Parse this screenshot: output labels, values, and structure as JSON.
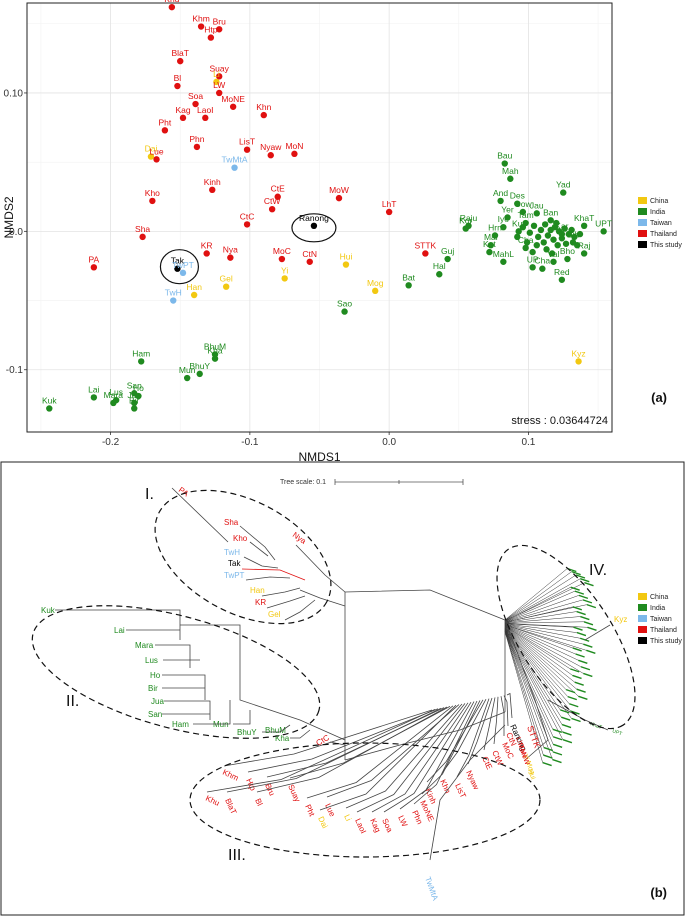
{
  "colors": {
    "China": "#f2c811",
    "India": "#1f8a1f",
    "Taiwan": "#7cb8ea",
    "Thailand": "#e01010",
    "This study": "#000000"
  },
  "chart_data": [
    {
      "type": "scatter",
      "panel_label": "(a)",
      "xlabel": "NMDS1",
      "ylabel": "NMDS2",
      "xlim": [
        -0.26,
        0.16
      ],
      "ylim": [
        -0.145,
        0.165
      ],
      "xticks": [
        {
          "v": -0.2,
          "label": "-0.2"
        },
        {
          "v": -0.1,
          "label": "-0.1"
        },
        {
          "v": 0.0,
          "label": "0.0"
        },
        {
          "v": 0.1,
          "label": "0.1"
        }
      ],
      "yticks": [
        {
          "v": -0.1,
          "label": "-0.1"
        },
        {
          "v": 0.0,
          "label": "0.0"
        },
        {
          "v": 0.1,
          "label": "0.10"
        }
      ],
      "stress_text": "stress : 0.03644724",
      "legend": [
        "China",
        "India",
        "Taiwan",
        "Thailand",
        "This study"
      ],
      "points": [
        {
          "name": "Khu",
          "group": "Thailand",
          "x": -0.156,
          "y": 0.162
        },
        {
          "name": "Khm",
          "group": "Thailand",
          "x": -0.135,
          "y": 0.148
        },
        {
          "name": "Htp",
          "group": "Thailand",
          "x": -0.128,
          "y": 0.14
        },
        {
          "name": "Bru",
          "group": "Thailand",
          "x": -0.122,
          "y": 0.146
        },
        {
          "name": "BlaT",
          "group": "Thailand",
          "x": -0.15,
          "y": 0.123
        },
        {
          "name": "Suay",
          "group": "Thailand",
          "x": -0.122,
          "y": 0.112
        },
        {
          "name": "Li",
          "group": "China",
          "x": -0.124,
          "y": 0.108
        },
        {
          "name": "Bl",
          "group": "Thailand",
          "x": -0.152,
          "y": 0.105
        },
        {
          "name": "LW",
          "group": "Thailand",
          "x": -0.122,
          "y": 0.1
        },
        {
          "name": "Soa",
          "group": "Thailand",
          "x": -0.139,
          "y": 0.092
        },
        {
          "name": "MoNE",
          "group": "Thailand",
          "x": -0.112,
          "y": 0.09
        },
        {
          "name": "Kag",
          "group": "Thailand",
          "x": -0.148,
          "y": 0.082
        },
        {
          "name": "LaoI",
          "group": "Thailand",
          "x": -0.132,
          "y": 0.082
        },
        {
          "name": "Khn",
          "group": "Thailand",
          "x": -0.09,
          "y": 0.084
        },
        {
          "name": "Pht",
          "group": "Thailand",
          "x": -0.161,
          "y": 0.073
        },
        {
          "name": "Phn",
          "group": "Thailand",
          "x": -0.138,
          "y": 0.061
        },
        {
          "name": "LisT",
          "group": "Thailand",
          "x": -0.102,
          "y": 0.059
        },
        {
          "name": "Nyaw",
          "group": "Thailand",
          "x": -0.085,
          "y": 0.055
        },
        {
          "name": "MoN",
          "group": "Thailand",
          "x": -0.068,
          "y": 0.056
        },
        {
          "name": "Dai",
          "group": "China",
          "x": -0.171,
          "y": 0.054
        },
        {
          "name": "Lue",
          "group": "Thailand",
          "x": -0.167,
          "y": 0.052
        },
        {
          "name": "TwMtA",
          "group": "Taiwan",
          "x": -0.111,
          "y": 0.046
        },
        {
          "name": "Kinh",
          "group": "Thailand",
          "x": -0.127,
          "y": 0.03
        },
        {
          "name": "CtE",
          "group": "Thailand",
          "x": -0.08,
          "y": 0.025
        },
        {
          "name": "MoW",
          "group": "Thailand",
          "x": -0.036,
          "y": 0.024
        },
        {
          "name": "LhT",
          "group": "Thailand",
          "x": 0.0,
          "y": 0.014
        },
        {
          "name": "CtW",
          "group": "Thailand",
          "x": -0.084,
          "y": 0.016
        },
        {
          "name": "Kho",
          "group": "Thailand",
          "x": -0.17,
          "y": 0.022
        },
        {
          "name": "CtC",
          "group": "Thailand",
          "x": -0.102,
          "y": 0.005
        },
        {
          "name": "Ranong",
          "group": "This study",
          "x": -0.054,
          "y": 0.004
        },
        {
          "name": "Sha",
          "group": "Thailand",
          "x": -0.177,
          "y": -0.004
        },
        {
          "name": "KR",
          "group": "Thailand",
          "x": -0.131,
          "y": -0.016
        },
        {
          "name": "Nya",
          "group": "Thailand",
          "x": -0.114,
          "y": -0.019
        },
        {
          "name": "MoC",
          "group": "Thailand",
          "x": -0.077,
          "y": -0.02
        },
        {
          "name": "CtN",
          "group": "Thailand",
          "x": -0.057,
          "y": -0.022
        },
        {
          "name": "PA",
          "group": "Thailand",
          "x": -0.212,
          "y": -0.026
        },
        {
          "name": "Tak",
          "group": "This study",
          "x": -0.152,
          "y": -0.027
        },
        {
          "name": "TwPT",
          "group": "Taiwan",
          "x": -0.148,
          "y": -0.03
        },
        {
          "name": "Gel",
          "group": "China",
          "x": -0.117,
          "y": -0.04
        },
        {
          "name": "Han",
          "group": "China",
          "x": -0.14,
          "y": -0.046
        },
        {
          "name": "Yi",
          "group": "China",
          "x": -0.075,
          "y": -0.034
        },
        {
          "name": "Hui",
          "group": "China",
          "x": -0.031,
          "y": -0.024
        },
        {
          "name": "Mog",
          "group": "China",
          "x": -0.01,
          "y": -0.043
        },
        {
          "name": "STTK",
          "group": "Thailand",
          "x": 0.026,
          "y": -0.016
        },
        {
          "name": "TwH",
          "group": "Taiwan",
          "x": -0.155,
          "y": -0.05
        },
        {
          "name": "Sao",
          "group": "India",
          "x": -0.032,
          "y": -0.058
        },
        {
          "name": "Bat",
          "group": "India",
          "x": 0.014,
          "y": -0.039
        },
        {
          "name": "Hal",
          "group": "India",
          "x": 0.036,
          "y": -0.031
        },
        {
          "name": "Guj",
          "group": "India",
          "x": 0.042,
          "y": -0.02
        },
        {
          "name": "Raju",
          "group": "India",
          "x": 0.057,
          "y": 0.004
        },
        {
          "name": "Kor",
          "group": "India",
          "x": 0.055,
          "y": 0.002
        },
        {
          "name": "Bau",
          "group": "India",
          "x": 0.083,
          "y": 0.049
        },
        {
          "name": "Mah",
          "group": "India",
          "x": 0.087,
          "y": 0.038
        },
        {
          "name": "Yad",
          "group": "India",
          "x": 0.125,
          "y": 0.028
        },
        {
          "name": "And",
          "group": "India",
          "x": 0.08,
          "y": 0.022
        },
        {
          "name": "Des",
          "group": "India",
          "x": 0.092,
          "y": 0.02
        },
        {
          "name": "Gow",
          "group": "India",
          "x": 0.096,
          "y": 0.014
        },
        {
          "name": "Jau",
          "group": "India",
          "x": 0.106,
          "y": 0.013
        },
        {
          "name": "Ban",
          "group": "India",
          "x": 0.116,
          "y": 0.008
        },
        {
          "name": "Tam",
          "group": "India",
          "x": 0.098,
          "y": 0.006
        },
        {
          "name": "Kur",
          "group": "India",
          "x": 0.093,
          "y": 0.0
        },
        {
          "name": "Yer",
          "group": "India",
          "x": 0.085,
          "y": 0.01
        },
        {
          "name": "Iye",
          "group": "India",
          "x": 0.082,
          "y": 0.003
        },
        {
          "name": "Hrn",
          "group": "India",
          "x": 0.076,
          "y": -0.003
        },
        {
          "name": "Mal",
          "group": "India",
          "x": 0.073,
          "y": -0.01
        },
        {
          "name": "Kat",
          "group": "India",
          "x": 0.072,
          "y": -0.015
        },
        {
          "name": "Cha",
          "group": "India",
          "x": 0.098,
          "y": -0.012
        },
        {
          "name": "Kar",
          "group": "India",
          "x": 0.124,
          "y": -0.002
        },
        {
          "name": "KhaT",
          "group": "India",
          "x": 0.14,
          "y": 0.004
        },
        {
          "name": "UPT",
          "group": "India",
          "x": 0.154,
          "y": 0.0
        },
        {
          "name": "Bih",
          "group": "India",
          "x": 0.132,
          "y": -0.008
        },
        {
          "name": "Raj",
          "group": "India",
          "x": 0.14,
          "y": -0.016
        },
        {
          "name": "Bho",
          "group": "India",
          "x": 0.128,
          "y": -0.02
        },
        {
          "name": "Val",
          "group": "India",
          "x": 0.118,
          "y": -0.022
        },
        {
          "name": "MahL",
          "group": "India",
          "x": 0.082,
          "y": -0.022
        },
        {
          "name": "UP",
          "group": "India",
          "x": 0.103,
          "y": -0.026
        },
        {
          "name": "Cha",
          "group": "India",
          "x": 0.11,
          "y": -0.027
        },
        {
          "name": "Red",
          "group": "India",
          "x": 0.124,
          "y": -0.035
        },
        {
          "name": "Kyz",
          "group": "China",
          "x": 0.136,
          "y": -0.094
        },
        {
          "name": "Ham",
          "group": "India",
          "x": -0.178,
          "y": -0.094
        },
        {
          "name": "BhuM",
          "group": "India",
          "x": -0.125,
          "y": -0.089
        },
        {
          "name": "Kha",
          "group": "India",
          "x": -0.125,
          "y": -0.092
        },
        {
          "name": "BhuY",
          "group": "India",
          "x": -0.136,
          "y": -0.103
        },
        {
          "name": "Mun",
          "group": "India",
          "x": -0.145,
          "y": -0.106
        },
        {
          "name": "Lai",
          "group": "India",
          "x": -0.212,
          "y": -0.12
        },
        {
          "name": "Lus",
          "group": "India",
          "x": -0.196,
          "y": -0.122
        },
        {
          "name": "San",
          "group": "India",
          "x": -0.183,
          "y": -0.117
        },
        {
          "name": "Ho",
          "group": "India",
          "x": -0.18,
          "y": -0.119
        },
        {
          "name": "Mara",
          "group": "India",
          "x": -0.198,
          "y": -0.124
        },
        {
          "name": "Jua",
          "group": "India",
          "x": -0.183,
          "y": -0.124
        },
        {
          "name": "Bir",
          "group": "India",
          "x": -0.183,
          "y": -0.128
        },
        {
          "name": "Kuk",
          "group": "India",
          "x": -0.244,
          "y": -0.128
        }
      ],
      "extra_india_cluster": [
        [
          0.092,
          -0.004
        ],
        [
          0.096,
          0.003
        ],
        [
          0.101,
          -0.001
        ],
        [
          0.104,
          0.004
        ],
        [
          0.107,
          -0.004
        ],
        [
          0.109,
          0.001
        ],
        [
          0.111,
          -0.008
        ],
        [
          0.112,
          0.005
        ],
        [
          0.114,
          -0.003
        ],
        [
          0.116,
          0.001
        ],
        [
          0.118,
          -0.006
        ],
        [
          0.119,
          0.003
        ],
        [
          0.121,
          -0.01
        ],
        [
          0.122,
          0.0
        ],
        [
          0.124,
          -0.005
        ],
        [
          0.126,
          0.002
        ],
        [
          0.127,
          -0.009
        ],
        [
          0.129,
          -0.002
        ],
        [
          0.131,
          0.001
        ],
        [
          0.133,
          -0.004
        ],
        [
          0.135,
          -0.01
        ],
        [
          0.137,
          -0.002
        ],
        [
          0.113,
          -0.013
        ],
        [
          0.117,
          -0.016
        ],
        [
          0.106,
          -0.01
        ],
        [
          0.099,
          -0.008
        ],
        [
          0.103,
          -0.015
        ],
        [
          0.12,
          0.006
        ]
      ],
      "annotations": [
        "Tak",
        "Ranong"
      ]
    },
    {
      "type": "tree",
      "panel_label": "(b)",
      "scale_label": "Tree scale: 0.1",
      "legend": [
        "China",
        "India",
        "Taiwan",
        "Thailand",
        "This study"
      ],
      "clusters": [
        {
          "label": "I.",
          "leaves": [
            {
              "name": "PA",
              "group": "Thailand"
            },
            {
              "name": "Sha",
              "group": "Thailand"
            },
            {
              "name": "Kho",
              "group": "Thailand"
            },
            {
              "name": "TwH",
              "group": "Taiwan"
            },
            {
              "name": "Tak",
              "group": "This study"
            },
            {
              "name": "TwPT",
              "group": "Taiwan"
            },
            {
              "name": "Han",
              "group": "China"
            },
            {
              "name": "KR",
              "group": "Thailand"
            },
            {
              "name": "Gel",
              "group": "China"
            },
            {
              "name": "Nya",
              "group": "Thailand"
            }
          ]
        },
        {
          "label": "II.",
          "leaves": [
            {
              "name": "Kuk",
              "group": "India"
            },
            {
              "name": "Lai",
              "group": "India"
            },
            {
              "name": "Mara",
              "group": "India"
            },
            {
              "name": "Lus",
              "group": "India"
            },
            {
              "name": "Ho",
              "group": "India"
            },
            {
              "name": "Bir",
              "group": "India"
            },
            {
              "name": "Jua",
              "group": "India"
            },
            {
              "name": "San",
              "group": "India"
            },
            {
              "name": "Ham",
              "group": "India"
            },
            {
              "name": "Mun",
              "group": "India"
            },
            {
              "name": "BhuY",
              "group": "India"
            },
            {
              "name": "BhuM",
              "group": "India"
            },
            {
              "name": "Kha",
              "group": "India"
            },
            {
              "name": "CtC",
              "group": "Thailand"
            }
          ]
        },
        {
          "label": "III.",
          "leaves": [
            {
              "name": "Khm",
              "group": "Thailand"
            },
            {
              "name": "Khu",
              "group": "Thailand"
            },
            {
              "name": "Htp",
              "group": "Thailand"
            },
            {
              "name": "BlaT",
              "group": "Thailand"
            },
            {
              "name": "Bru",
              "group": "Thailand"
            },
            {
              "name": "Bl",
              "group": "Thailand"
            },
            {
              "name": "Suay",
              "group": "Thailand"
            },
            {
              "name": "Pht",
              "group": "Thailand"
            },
            {
              "name": "Dai",
              "group": "China"
            },
            {
              "name": "Lue",
              "group": "Thailand"
            },
            {
              "name": "Li",
              "group": "China"
            },
            {
              "name": "LaoI",
              "group": "Thailand"
            },
            {
              "name": "Kag",
              "group": "Thailand"
            },
            {
              "name": "Soa",
              "group": "Thailand"
            },
            {
              "name": "LW",
              "group": "Thailand"
            },
            {
              "name": "Phn",
              "group": "Thailand"
            },
            {
              "name": "MoNE",
              "group": "Thailand"
            },
            {
              "name": "Kinh",
              "group": "Thailand"
            },
            {
              "name": "Khn",
              "group": "Thailand"
            },
            {
              "name": "LisT",
              "group": "Thailand"
            },
            {
              "name": "Nyaw",
              "group": "Thailand"
            },
            {
              "name": "CtE",
              "group": "Thailand"
            },
            {
              "name": "CtW",
              "group": "Thailand"
            },
            {
              "name": "MoC",
              "group": "Thailand"
            },
            {
              "name": "CtN",
              "group": "Thailand"
            },
            {
              "name": "Ranong",
              "group": "This study"
            },
            {
              "name": "TwMtA",
              "group": "Taiwan"
            }
          ]
        },
        {
          "label": "IV.",
          "leaves": [
            {
              "name": "Kyz",
              "group": "China"
            },
            {
              "name": "UPT",
              "group": "India"
            },
            {
              "name": "KhaT",
              "group": "India"
            },
            {
              "name": "STTK",
              "group": "Thailand"
            },
            {
              "name": "Hui",
              "group": "China"
            },
            {
              "name": "Mog",
              "group": "China"
            },
            {
              "name": "Yi",
              "group": "China"
            },
            {
              "name": "MoW",
              "group": "Thailand"
            },
            {
              "name": "MoN",
              "group": "Thailand"
            },
            {
              "name": "LhT",
              "group": "Thailand"
            }
          ]
        }
      ]
    }
  ]
}
